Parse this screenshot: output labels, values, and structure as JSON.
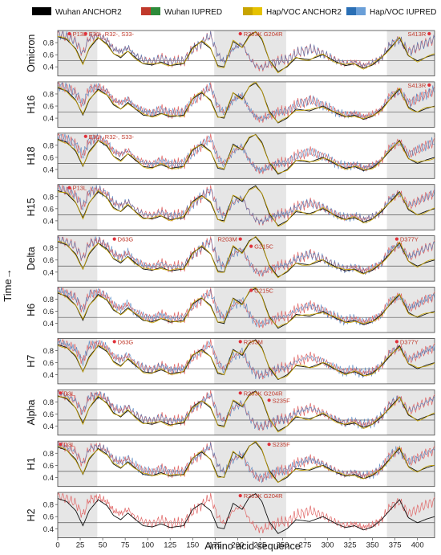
{
  "legend": {
    "items": [
      {
        "label": "Wuhan ANCHOR2",
        "colors": [
          "#000000"
        ]
      },
      {
        "label": "Wuhan IUPRED",
        "colors": [
          "#c0392b",
          "#2e8b3a"
        ]
      },
      {
        "label": "Hap/VOC ANCHOR2",
        "colors": [
          "#c8a400",
          "#e6c200"
        ]
      },
      {
        "label": "Hap/VOC IUPRED",
        "colors": [
          "#2a6fb5",
          "#6a9fd8"
        ]
      }
    ]
  },
  "colors": {
    "wuhan_anchor": "#111111",
    "wuhan_iupred": "#e06666",
    "voc_anchor": "#c8a400",
    "voc_iupred": "#3a72b8",
    "shade": "#e6e6e6",
    "mutation_dot": "#e0303a",
    "mutation_text": "#c0392b"
  },
  "chart_data": {
    "type": "line",
    "xlabel": "Amino acid sequence",
    "ylabel": "Time→",
    "xlim": [
      0,
      419
    ],
    "ylim": [
      0.25,
      1.0
    ],
    "x_ticks": [
      0,
      25,
      50,
      75,
      100,
      125,
      150,
      175,
      200,
      225,
      250,
      275,
      300,
      325,
      350,
      375,
      400
    ],
    "y_ticks": [
      "0.4",
      "0.6",
      "0.8"
    ],
    "reference_line_y": 0.5,
    "shaded_regions": [
      [
        0,
        44
      ],
      [
        174,
        254
      ],
      [
        366,
        419
      ]
    ],
    "series_names": [
      "Wuhan ANCHOR2",
      "Wuhan IUPRED",
      "Hap/VOC ANCHOR2",
      "Hap/VOC IUPRED"
    ],
    "anchor_profile": {
      "x": [
        0,
        10,
        20,
        28,
        35,
        45,
        55,
        62,
        70,
        78,
        85,
        95,
        105,
        115,
        125,
        140,
        150,
        160,
        170,
        178,
        185,
        195,
        205,
        213,
        220,
        227,
        235,
        245,
        255,
        265,
        280,
        295,
        310,
        320,
        330,
        340,
        350,
        360,
        370,
        380,
        390,
        400,
        410,
        419
      ],
      "y": [
        0.9,
        0.85,
        0.7,
        0.45,
        0.7,
        0.88,
        0.78,
        0.62,
        0.55,
        0.66,
        0.57,
        0.45,
        0.43,
        0.48,
        0.42,
        0.45,
        0.72,
        0.82,
        0.7,
        0.42,
        0.4,
        0.82,
        0.72,
        0.92,
        0.98,
        0.85,
        0.52,
        0.32,
        0.4,
        0.55,
        0.52,
        0.6,
        0.48,
        0.42,
        0.45,
        0.38,
        0.43,
        0.55,
        0.72,
        0.88,
        0.58,
        0.5,
        0.56,
        0.6
      ]
    },
    "iupred_profile": {
      "x": [
        0,
        10,
        20,
        28,
        35,
        45,
        55,
        62,
        70,
        78,
        85,
        95,
        105,
        115,
        125,
        140,
        150,
        160,
        170,
        178,
        185,
        195,
        205,
        213,
        220,
        227,
        235,
        245,
        255,
        265,
        280,
        295,
        310,
        320,
        330,
        340,
        350,
        360,
        370,
        380,
        390,
        400,
        410,
        419
      ],
      "y": [
        0.95,
        0.9,
        0.82,
        0.62,
        0.88,
        0.92,
        0.84,
        0.7,
        0.65,
        0.72,
        0.6,
        0.52,
        0.48,
        0.55,
        0.48,
        0.5,
        0.68,
        0.8,
        0.92,
        0.6,
        0.48,
        0.7,
        0.78,
        0.55,
        0.42,
        0.38,
        0.45,
        0.5,
        0.52,
        0.62,
        0.7,
        0.62,
        0.5,
        0.45,
        0.48,
        0.42,
        0.46,
        0.55,
        0.78,
        0.85,
        0.65,
        0.72,
        0.8,
        0.86
      ]
    },
    "panels": [
      {
        "name": "Omicron",
        "mutations": [
          {
            "label": "P13L",
            "x": 13
          },
          {
            "label": "E31-, R32-, S33-",
            "x": 31
          },
          {
            "label": "R203K G204R",
            "x": 203
          },
          {
            "label": "S413R",
            "x": 413,
            "side": "left"
          }
        ]
      },
      {
        "name": "H16",
        "mutations": [
          {
            "label": "S413R",
            "x": 413,
            "side": "left"
          }
        ]
      },
      {
        "name": "H18",
        "mutations": [
          {
            "label": "E31-, R32-, S33-",
            "x": 31
          }
        ]
      },
      {
        "name": "H15",
        "mutations": [
          {
            "label": "P13L",
            "x": 13
          }
        ]
      },
      {
        "name": "Delta",
        "mutations": [
          {
            "label": "D63G",
            "x": 63
          },
          {
            "label": "R203M",
            "x": 203,
            "side": "left"
          },
          {
            "label": "G215C",
            "x": 215,
            "row": 1
          },
          {
            "label": "D377Y",
            "x": 377
          }
        ]
      },
      {
        "name": "H6",
        "mutations": [
          {
            "label": "G215C",
            "x": 215
          }
        ]
      },
      {
        "name": "H7",
        "mutations": [
          {
            "label": "D63G",
            "x": 63
          },
          {
            "label": "R203M",
            "x": 203
          },
          {
            "label": "D377Y",
            "x": 377
          }
        ]
      },
      {
        "name": "Alpha",
        "mutations": [
          {
            "label": "D3L",
            "x": 3
          },
          {
            "label": "R203K G204R",
            "x": 203
          },
          {
            "label": "S235F",
            "x": 235,
            "row": 1
          }
        ]
      },
      {
        "name": "H1",
        "mutations": [
          {
            "label": "D3L",
            "x": 3
          },
          {
            "label": "S235F",
            "x": 235
          }
        ]
      },
      {
        "name": "H2",
        "mutations": [
          {
            "label": "R203K G204R",
            "x": 203
          }
        ]
      }
    ]
  }
}
